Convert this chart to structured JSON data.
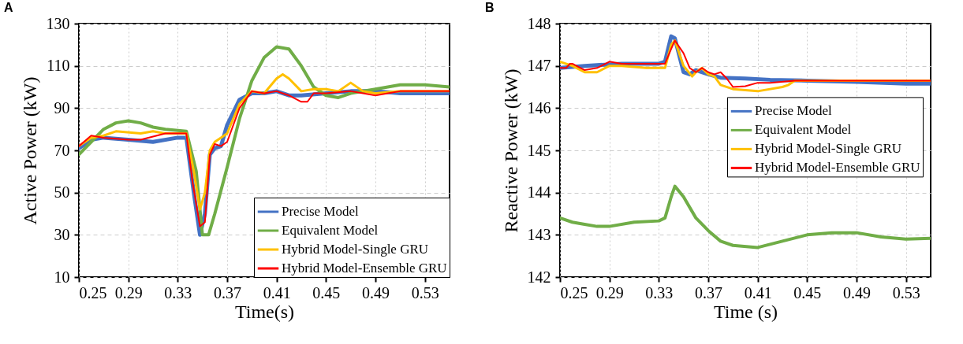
{
  "chart_data": [
    {
      "type": "line",
      "title": "A",
      "xlabel": "Time(s)",
      "ylabel": "Active Power (kW)",
      "xlim": [
        0.25,
        0.55
      ],
      "xticks": [
        0.25,
        0.29,
        0.33,
        0.37,
        0.41,
        0.45,
        0.49,
        0.53
      ],
      "ylim": [
        10,
        130
      ],
      "yticks": [
        10,
        30,
        50,
        70,
        90,
        110,
        130
      ],
      "grid": true,
      "legend": "bottom right",
      "line_style": "solid",
      "series": [
        {
          "name": "Precise Model",
          "color": "#4472c4",
          "x": [
            0.25,
            0.26,
            0.27,
            0.29,
            0.31,
            0.33,
            0.337,
            0.343,
            0.348,
            0.352,
            0.356,
            0.36,
            0.365,
            0.37,
            0.38,
            0.39,
            0.4,
            0.41,
            0.42,
            0.43,
            0.45,
            0.47,
            0.49,
            0.51,
            0.53,
            0.55
          ],
          "values": [
            71,
            75,
            76,
            75,
            74,
            76,
            76,
            50,
            30,
            40,
            68,
            71,
            72,
            82,
            94,
            97,
            97,
            98,
            96,
            96,
            97,
            98,
            98,
            97,
            97,
            97
          ]
        },
        {
          "name": "Equivalent Model",
          "color": "#70ad47",
          "x": [
            0.25,
            0.26,
            0.27,
            0.28,
            0.29,
            0.3,
            0.31,
            0.32,
            0.337,
            0.345,
            0.35,
            0.355,
            0.36,
            0.37,
            0.38,
            0.39,
            0.4,
            0.41,
            0.42,
            0.43,
            0.44,
            0.45,
            0.46,
            0.47,
            0.49,
            0.51,
            0.53,
            0.55
          ],
          "values": [
            68,
            74,
            80,
            83,
            84,
            83,
            81,
            80,
            79,
            60,
            30,
            30,
            40,
            62,
            85,
            103,
            114,
            119,
            118,
            110,
            100,
            96,
            95,
            97,
            99,
            101,
            101,
            100
          ]
        },
        {
          "name": "Hybrid Model-Single GRU",
          "color": "#ffc000",
          "x": [
            0.25,
            0.26,
            0.27,
            0.28,
            0.3,
            0.31,
            0.32,
            0.337,
            0.343,
            0.348,
            0.352,
            0.356,
            0.36,
            0.365,
            0.37,
            0.38,
            0.39,
            0.4,
            0.41,
            0.415,
            0.42,
            0.43,
            0.44,
            0.45,
            0.46,
            0.47,
            0.48,
            0.49,
            0.51,
            0.53,
            0.55
          ],
          "values": [
            72,
            76,
            77,
            79,
            78,
            79,
            78,
            78,
            60,
            42,
            50,
            70,
            74,
            76,
            78,
            92,
            98,
            97,
            104,
            106,
            104,
            98,
            99,
            99,
            98,
            102,
            98,
            97,
            98,
            98,
            98
          ]
        },
        {
          "name": "Hybrid Model-Ensemble GRU",
          "color": "#ff0000",
          "x": [
            0.25,
            0.26,
            0.27,
            0.29,
            0.3,
            0.32,
            0.337,
            0.342,
            0.348,
            0.352,
            0.356,
            0.36,
            0.365,
            0.37,
            0.38,
            0.39,
            0.4,
            0.41,
            0.42,
            0.43,
            0.435,
            0.44,
            0.45,
            0.47,
            0.48,
            0.49,
            0.5,
            0.51,
            0.53,
            0.55
          ],
          "values": [
            72,
            77,
            76,
            75,
            75,
            78,
            78,
            55,
            34,
            36,
            68,
            73,
            72,
            74,
            90,
            98,
            97,
            98,
            96,
            93,
            93,
            97,
            97,
            98,
            97,
            96,
            97,
            98,
            98,
            98
          ]
        }
      ]
    },
    {
      "type": "line",
      "title": "B",
      "xlabel": "Time (s)",
      "ylabel": "Reactive Power (kW)",
      "xlim": [
        0.25,
        0.55
      ],
      "xticks": [
        0.25,
        0.29,
        0.33,
        0.37,
        0.41,
        0.45,
        0.49,
        0.53
      ],
      "ylim": [
        142,
        148
      ],
      "yticks": [
        142,
        143,
        144,
        145,
        146,
        147,
        148
      ],
      "grid": true,
      "legend": "right",
      "line_style": "solid",
      "series": [
        {
          "name": "Precise Model",
          "color": "#4472c4",
          "x": [
            0.25,
            0.27,
            0.3,
            0.33,
            0.335,
            0.34,
            0.343,
            0.35,
            0.355,
            0.36,
            0.37,
            0.38,
            0.4,
            0.42,
            0.45,
            0.49,
            0.53,
            0.55
          ],
          "values": [
            146.95,
            147.0,
            147.05,
            147.05,
            147.1,
            147.7,
            147.65,
            146.85,
            146.8,
            146.9,
            146.8,
            146.72,
            146.7,
            146.67,
            146.65,
            146.62,
            146.58,
            146.58
          ]
        },
        {
          "name": "Equivalent Model",
          "color": "#70ad47",
          "x": [
            0.25,
            0.26,
            0.27,
            0.28,
            0.29,
            0.31,
            0.33,
            0.335,
            0.34,
            0.343,
            0.35,
            0.36,
            0.37,
            0.38,
            0.39,
            0.41,
            0.43,
            0.45,
            0.47,
            0.49,
            0.51,
            0.53,
            0.55
          ],
          "values": [
            143.4,
            143.3,
            143.25,
            143.2,
            143.2,
            143.3,
            143.33,
            143.4,
            143.9,
            144.15,
            143.9,
            143.4,
            143.1,
            142.85,
            142.75,
            142.7,
            142.85,
            143.0,
            143.05,
            143.05,
            142.95,
            142.9,
            142.92
          ]
        },
        {
          "name": "Hybrid Model-Single GRU",
          "color": "#ffc000",
          "x": [
            0.25,
            0.26,
            0.27,
            0.28,
            0.29,
            0.3,
            0.32,
            0.335,
            0.34,
            0.343,
            0.35,
            0.357,
            0.36,
            0.365,
            0.37,
            0.375,
            0.38,
            0.39,
            0.41,
            0.43,
            0.435,
            0.44,
            0.47,
            0.55
          ],
          "values": [
            147.1,
            147.0,
            146.85,
            146.85,
            147.0,
            147.0,
            146.95,
            146.95,
            147.5,
            147.6,
            147.0,
            146.75,
            146.85,
            146.95,
            146.8,
            146.75,
            146.55,
            146.45,
            146.4,
            146.5,
            146.55,
            146.65,
            146.65,
            146.65
          ]
        },
        {
          "name": "Hybrid Model-Ensemble GRU",
          "color": "#ff0000",
          "x": [
            0.25,
            0.255,
            0.258,
            0.26,
            0.27,
            0.28,
            0.29,
            0.3,
            0.32,
            0.335,
            0.34,
            0.343,
            0.35,
            0.355,
            0.36,
            0.365,
            0.37,
            0.375,
            0.38,
            0.385,
            0.39,
            0.4,
            0.41,
            0.42,
            0.44,
            0.55
          ],
          "values": [
            146.95,
            146.95,
            147.05,
            147.05,
            146.9,
            146.95,
            147.1,
            147.05,
            147.05,
            147.05,
            147.4,
            147.6,
            147.3,
            146.95,
            146.85,
            146.95,
            146.85,
            146.8,
            146.85,
            146.7,
            146.5,
            146.52,
            146.6,
            146.6,
            146.65,
            146.65
          ]
        }
      ]
    }
  ]
}
